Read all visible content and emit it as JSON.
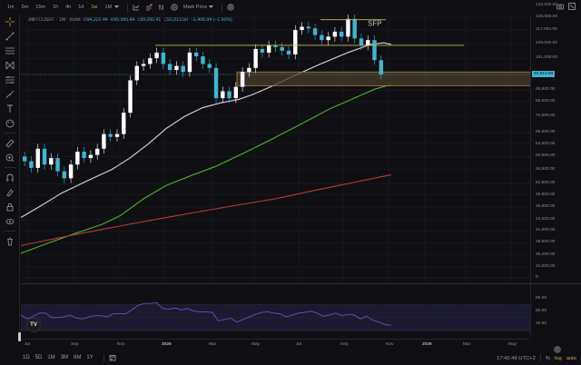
{
  "toolbar": {
    "timeframes": [
      "1m",
      "5m",
      "15m",
      "1h",
      "4h",
      "1d",
      "1w",
      "1M"
    ],
    "active_timeframe": "1w",
    "price_type": "Mark Price"
  },
  "legend": {
    "symbol": ".MBTCUSDT · 1W · Bybit",
    "open_label": "O",
    "open": "94,222.44",
    "high_label": "H",
    "high": "95,995.44",
    "low_label": "L",
    "low": "89,260.41",
    "close_label": "C",
    "close": "92,813.50",
    "change": "−1,408.94 (−1.50%)"
  },
  "annotation": {
    "sfp_label": "SFP"
  },
  "price_scale": {
    "ticks": [
      "133,000.00",
      "125,000.00",
      "117,000.00",
      "109,000.00",
      "101,000.00",
      "85,500.00",
      "80,500.00",
      "74,500.00",
      "68,500.00",
      "64,500.00",
      "60,500.00",
      "56,500.00",
      "52,500.00",
      "49,500.00",
      "46,500.00",
      "43,500.00",
      "41,000.00",
      "38,600.00",
      "36,200.00",
      "34,000.00"
    ],
    "current_price": "92,813.50",
    "volume_zero": "0"
  },
  "rsi_scale": {
    "ticks": [
      "80.00",
      "60.00",
      "40.00"
    ]
  },
  "time_axis": {
    "labels": [
      "Jul",
      "Sep",
      "Nov",
      "2025",
      "Mar",
      "May",
      "Jul",
      "Sep",
      "Nov",
      "2026",
      "Mar",
      "May"
    ]
  },
  "bottom": {
    "ranges": [
      "1D",
      "5D",
      "1M",
      "3M",
      "6M",
      "1Y"
    ],
    "clock": "17:42:49 UTC+2",
    "percent": "%",
    "log": "log",
    "auto": "auto"
  },
  "colors": {
    "bull": "#ffffff",
    "bear": "#3fb5d0",
    "ma_white": "#d8d8d8",
    "ma_green": "#4caf2a",
    "ma_red": "#b83a3a",
    "level_line": "#c9b84a",
    "zone_fill": "#4a3d2c",
    "zone_border": "#b27a3a",
    "rsi_line": "#6b4fbf",
    "rsi_band": "#1c1a2e"
  },
  "chart_data": {
    "type": "candlestick",
    "title": ".MBTCUSDT · 1W · Bybit",
    "x_labels": [
      "Jul",
      "Sep",
      "Nov",
      "2025",
      "Mar",
      "May",
      "Jul",
      "Sep",
      "Nov",
      "2026",
      "Mar",
      "May"
    ],
    "ylim": [
      34000,
      133000
    ],
    "scale": "log",
    "last": {
      "open": 94222.44,
      "high": 95995.44,
      "low": 89260.41,
      "close": 92813.5,
      "change": -1408.94,
      "change_pct": -1.5
    },
    "candles_approx_close": [
      59000,
      57000,
      63000,
      58000,
      60000,
      56000,
      54000,
      58000,
      62000,
      60000,
      61000,
      63000,
      68000,
      67000,
      68000,
      76000,
      90000,
      97000,
      98000,
      101000,
      104000,
      98000,
      95000,
      97000,
      94000,
      104000,
      102000,
      98000,
      96000,
      82000,
      85000,
      82000,
      87000,
      94000,
      96000,
      106000,
      104000,
      108000,
      107000,
      105000,
      103000,
      117000,
      119000,
      118000,
      114000,
      111000,
      113000,
      116000,
      113000,
      124000,
      112000,
      108000,
      111000,
      100000,
      92813
    ],
    "moving_averages": [
      {
        "name": "MA white (~20W)",
        "color": "#d8d8d8",
        "start": 44000,
        "end": 109000
      },
      {
        "name": "MA green (~50W)",
        "color": "#4caf2a",
        "start": 36500,
        "end": 88000
      },
      {
        "name": "MA red (~200W)",
        "color": "#b83a3a",
        "start": 38000,
        "end": 55000
      }
    ],
    "levels": [
      {
        "type": "horizontal",
        "price": 108000,
        "color": "#c9b84a"
      },
      {
        "type": "horizontal",
        "price": 123500,
        "color": "#c9b84a",
        "label": "SFP"
      }
    ],
    "zones": [
      {
        "top": 94000,
        "bottom": 87500,
        "color": "#4a3d2c"
      }
    ],
    "rsi": {
      "levels": [
        70,
        30
      ],
      "ticks": [
        80,
        60,
        40
      ],
      "values_approx": [
        54,
        48,
        52,
        57,
        57,
        50,
        50,
        51,
        54,
        49,
        48,
        51,
        53,
        53,
        51,
        56,
        56,
        56,
        62,
        69,
        72,
        72,
        73,
        64,
        63,
        65,
        62,
        64,
        60,
        59,
        59,
        58,
        45,
        47,
        49,
        43,
        47,
        51,
        55,
        58,
        59,
        57,
        56,
        51,
        54,
        57,
        58,
        60,
        57,
        52,
        54,
        57,
        53,
        55,
        54,
        48,
        52,
        46,
        43,
        39,
        38
      ]
    }
  }
}
